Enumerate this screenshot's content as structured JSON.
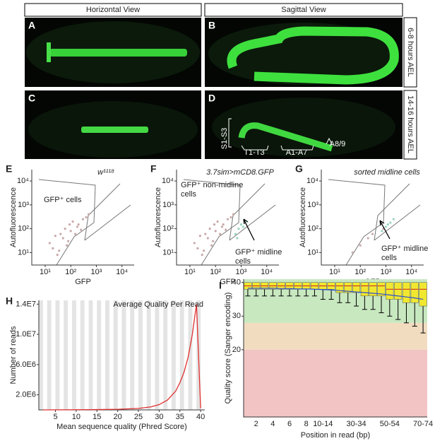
{
  "panel_letters": [
    "A",
    "B",
    "C",
    "D",
    "E",
    "F",
    "G",
    "H",
    "I"
  ],
  "headers": [
    "Horizontal View",
    "Sagittal View"
  ],
  "stage_labels": [
    "6-8 hours AEL",
    "14-16 hours AEL"
  ],
  "segment_labels": [
    "S1-S3",
    "T1-T3",
    "A1-A7",
    "A8/9"
  ],
  "chart_data": [
    {
      "type": "scatter",
      "log": true,
      "title": "w¹¹¹⁸",
      "xlabel": "GFP",
      "ylabel": "Autofluorescence",
      "annotations": [
        "GFP⁺ cells"
      ],
      "xlim": [
        3,
        30000
      ],
      "ylim": [
        3,
        30000
      ],
      "xticks": [
        {
          "value": 10,
          "label": "10¹"
        },
        {
          "value": 100,
          "label": "10²"
        },
        {
          "value": 1000,
          "label": "10³"
        },
        {
          "value": 10000,
          "label": "10⁴"
        }
      ],
      "yticks": [
        {
          "value": 10,
          "label": "10¹"
        },
        {
          "value": 100,
          "label": "10²"
        },
        {
          "value": 1000,
          "label": "10³"
        },
        {
          "value": 10000,
          "label": "10⁴"
        }
      ],
      "series": [
        {
          "color": "#c9a9a9",
          "x": [
            20,
            50,
            100,
            200,
            300,
            30,
            80,
            150,
            60,
            400,
            15,
            120,
            250,
            40,
            500,
            70,
            25,
            180,
            90,
            35
          ],
          "values": [
            15,
            40,
            80,
            150,
            250,
            8,
            30,
            60,
            100,
            300,
            25,
            200,
            90,
            60,
            400,
            20,
            50,
            120,
            150,
            12
          ]
        }
      ]
    },
    {
      "type": "scatter",
      "log": true,
      "title": "3.7sim>mCD8.GFP",
      "xlabel": "GFP",
      "ylabel": "Autofluorescence",
      "annotations": [
        "GFP⁺ non-midline",
        "cells",
        "GFP⁺ midline",
        "cells"
      ],
      "xlim": [
        3,
        30000
      ],
      "ylim": [
        3,
        30000
      ],
      "xticks": [
        {
          "value": 10,
          "label": "10¹"
        },
        {
          "value": 100,
          "label": "10²"
        },
        {
          "value": 1000,
          "label": "10³"
        },
        {
          "value": 10000,
          "label": "10⁴"
        }
      ],
      "yticks": [
        {
          "value": 10,
          "label": "10¹"
        },
        {
          "value": 100,
          "label": "10²"
        },
        {
          "value": 1000,
          "label": "10³"
        },
        {
          "value": 10000,
          "label": "10⁴"
        }
      ],
      "series": [
        {
          "color": "#c9a9a9",
          "x": [
            20,
            50,
            100,
            200,
            300,
            30,
            80,
            150,
            60,
            400,
            15,
            120,
            250,
            40,
            500,
            70,
            25,
            180,
            90,
            35
          ],
          "values": [
            15,
            40,
            80,
            150,
            250,
            8,
            30,
            60,
            100,
            300,
            25,
            200,
            90,
            60,
            400,
            20,
            50,
            120,
            150,
            12
          ]
        },
        {
          "color": "#9ad4c4",
          "x": [
            600,
            800,
            1000,
            1500,
            700,
            1200
          ],
          "values": [
            60,
            100,
            150,
            200,
            40,
            120
          ]
        }
      ]
    },
    {
      "type": "scatter",
      "log": true,
      "title": "sorted midline cells",
      "xlabel": "GFP",
      "ylabel": "Autofluorescence",
      "annotations": [
        "GFP⁺ midline",
        "cells"
      ],
      "xlim": [
        3,
        30000
      ],
      "ylim": [
        3,
        30000
      ],
      "xticks": [
        {
          "value": 10,
          "label": "10¹"
        },
        {
          "value": 100,
          "label": "10²"
        },
        {
          "value": 1000,
          "label": "10³"
        },
        {
          "value": 10000,
          "label": "10⁴"
        }
      ],
      "yticks": [
        {
          "value": 10,
          "label": "10¹"
        },
        {
          "value": 100,
          "label": "10²"
        },
        {
          "value": 1000,
          "label": "10³"
        },
        {
          "value": 10000,
          "label": "10⁴"
        }
      ],
      "series": [
        {
          "color": "#c9a9a9",
          "x": [
            100,
            300,
            50,
            800,
            200
          ],
          "values": [
            20,
            60,
            10,
            100,
            40
          ]
        },
        {
          "color": "#9ad4c4",
          "x": [
            1000,
            1500,
            700,
            2000,
            1200
          ],
          "values": [
            120,
            180,
            80,
            250,
            150
          ]
        }
      ]
    },
    {
      "type": "line",
      "xlabel": "Mean sequence quality (Phred Score)",
      "ylabel": "Number of reads",
      "xlim": [
        1,
        41
      ],
      "ylim": [
        0,
        14500000
      ],
      "xticks": [
        5,
        10,
        15,
        20,
        25,
        30,
        35,
        40
      ],
      "yticks": [
        {
          "value": 2000000,
          "label": "2.0E6"
        },
        {
          "value": 6000000,
          "label": "6.0E6"
        },
        {
          "value": 10000000,
          "label": "1.0E7"
        },
        {
          "value": 14000000,
          "label": "1.4E7"
        }
      ],
      "series": [
        {
          "name": "Average Quality Per Read",
          "color": "#e03030",
          "x": [
            2,
            5,
            10,
            15,
            20,
            25,
            28,
            30,
            32,
            34,
            35,
            36,
            37,
            38,
            39,
            40
          ],
          "values": [
            0,
            10000,
            20000,
            40000,
            80000,
            200000,
            400000,
            700000,
            1300000,
            2500000,
            3600000,
            5000000,
            7000000,
            10000000,
            14000000,
            200000
          ]
        }
      ]
    },
    {
      "type": "box",
      "xlabel": "Position in read (bp)",
      "ylabel": "Quality score (Sanger encoding)",
      "ylim": [
        0,
        41
      ],
      "yticks": [
        20,
        30,
        40
      ],
      "bands": [
        {
          "from": 0,
          "to": 20,
          "color": "#f2c4c4"
        },
        {
          "from": 20,
          "to": 28,
          "color": "#f2dcc0"
        },
        {
          "from": 28,
          "to": 41,
          "color": "#c8e8c0"
        }
      ],
      "categories": [
        null,
        "2",
        null,
        "4",
        null,
        "6",
        null,
        "8",
        null,
        "10-14",
        null,
        null,
        null,
        "30-34",
        null,
        null,
        null,
        "50-54",
        null,
        null,
        null,
        "70-74"
      ],
      "box_color": "#f0e830",
      "median_color": "#d02020",
      "mean_color": "#3050d0",
      "q3": [
        40,
        40,
        40,
        40,
        40,
        40,
        40,
        40,
        40,
        40,
        40,
        40,
        40,
        40,
        40,
        40,
        40,
        40,
        40,
        40,
        40,
        40
      ],
      "median": [
        39,
        39,
        39,
        39,
        39,
        39,
        39,
        39,
        39,
        39,
        39,
        39,
        39,
        39,
        39,
        39,
        39,
        38,
        38,
        38,
        38,
        38
      ],
      "q1": [
        38,
        38,
        38,
        38,
        38,
        38,
        38,
        38,
        38,
        38,
        38,
        37,
        37,
        37,
        36,
        36,
        36,
        35,
        35,
        34,
        34,
        33
      ],
      "low": [
        36,
        36,
        36,
        36,
        36,
        36,
        36,
        36,
        36,
        35,
        35,
        34,
        34,
        33,
        32,
        32,
        31,
        30,
        29,
        28,
        27,
        25
      ],
      "high": [
        40,
        40,
        40,
        40,
        40,
        40,
        40,
        40,
        40,
        40,
        40,
        40,
        40,
        40,
        40,
        40,
        40,
        40,
        40,
        40,
        40,
        40
      ],
      "mean": [
        38.3,
        38.3,
        38.3,
        38.3,
        38.2,
        38.2,
        38.1,
        38.1,
        38,
        37.9,
        37.8,
        37.6,
        37.4,
        37.2,
        37,
        36.8,
        36.6,
        36.3,
        36,
        35.7,
        35.4,
        35
      ]
    }
  ]
}
